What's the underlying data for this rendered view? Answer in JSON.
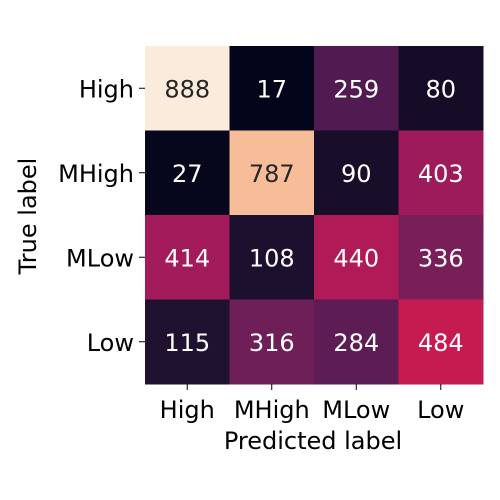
{
  "chart_data": {
    "type": "heatmap",
    "xlabel": "Predicted label",
    "ylabel": "True label",
    "x_categories": [
      "High",
      "MHigh",
      "MLow",
      "Low"
    ],
    "y_categories": [
      "High",
      "MHigh",
      "MLow",
      "Low"
    ],
    "matrix": [
      [
        888,
        17,
        259,
        80
      ],
      [
        27,
        787,
        90,
        403
      ],
      [
        414,
        108,
        440,
        336
      ],
      [
        115,
        316,
        284,
        484
      ]
    ],
    "value_range": [
      17,
      888
    ],
    "colormap": "rocket",
    "colorbar": false,
    "grid": false
  }
}
